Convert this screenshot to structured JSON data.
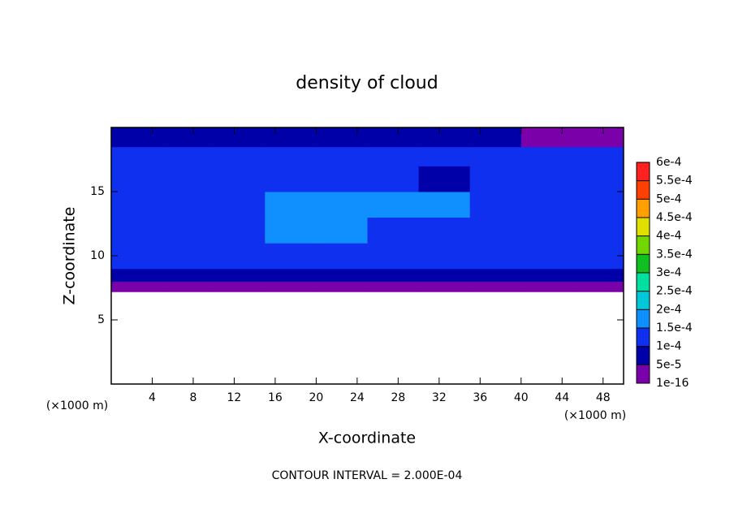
{
  "chart_data": {
    "type": "contour",
    "title": "density of cloud",
    "x_label": "X-coordinate",
    "y_label": "Z-coordinate",
    "x_unit_left": "(×1000 m)",
    "x_unit_right": "(×1000 m)",
    "footer": "CONTOUR INTERVAL = 2.000E-04",
    "xlim": [
      0,
      50
    ],
    "ylim": [
      0,
      20
    ],
    "xticks": [
      4,
      8,
      12,
      16,
      20,
      24,
      28,
      32,
      36,
      40,
      44,
      48
    ],
    "yticks": [
      5,
      10,
      15
    ],
    "field": {
      "xbins": [
        0,
        5,
        10,
        15,
        20,
        25,
        30,
        35,
        40,
        45,
        50
      ],
      "zbins": [
        7.2,
        8,
        9,
        11,
        13,
        15,
        17,
        18.5,
        20
      ],
      "values": [
        [
          3e-05,
          3e-05,
          3e-05,
          3e-05,
          3e-05,
          3e-05,
          3e-05,
          3e-05,
          3e-05,
          3e-05
        ],
        [
          7e-05,
          7e-05,
          7e-05,
          7e-05,
          7e-05,
          7e-05,
          7e-05,
          7e-05,
          7e-05,
          7e-05
        ],
        [
          0.00011,
          0.00011,
          0.00011,
          0.00011,
          0.00011,
          0.00011,
          0.00011,
          0.00011,
          0.00011,
          0.00011
        ],
        [
          0.00013,
          0.00013,
          0.00013,
          0.00016,
          0.00016,
          0.00013,
          0.00013,
          0.00013,
          0.00013,
          0.00013
        ],
        [
          0.00014,
          0.00014,
          0.00012,
          0.00016,
          0.00016,
          0.00016,
          0.00016,
          0.00014,
          0.00014,
          0.00014
        ],
        [
          0.00014,
          0.00014,
          0.00012,
          0.00014,
          0.00014,
          0.00014,
          7e-05,
          0.00014,
          0.00014,
          0.00014
        ],
        [
          0.0001,
          0.00012,
          0.00012,
          0.00011,
          0.00012,
          0.00012,
          0.00011,
          0.00012,
          0.00012,
          0.00012
        ],
        [
          6e-05,
          6e-05,
          6e-05,
          5e-05,
          6e-05,
          6e-05,
          5e-05,
          6e-05,
          4e-05,
          4e-05
        ]
      ]
    },
    "colorbar": {
      "ticks": [
        1e-16,
        {
          "value": 5e-05,
          "label": "5e-5"
        },
        {
          "value": 0.0001,
          "label": "1e-4"
        },
        {
          "value": 0.00015,
          "label": "1.5e-4"
        },
        {
          "value": 0.0002,
          "label": "2e-4"
        },
        {
          "value": 0.00025,
          "label": "2.5e-4"
        },
        {
          "value": 0.0003,
          "label": "3e-4"
        },
        {
          "value": 0.00035,
          "label": "3.5e-4"
        },
        {
          "value": 0.0004,
          "label": "4e-4"
        },
        {
          "value": 0.00045,
          "label": "4.5e-4"
        },
        {
          "value": 0.0005,
          "label": "5e-4"
        },
        {
          "value": 0.00055,
          "label": "5.5e-4"
        },
        {
          "value": 0.0006,
          "label": "6e-4"
        }
      ],
      "colors": [
        "#7a00aa",
        "#0000a8",
        "#1030f0",
        "#1090ff",
        "#00c8d8",
        "#00e0a0",
        "#10c020",
        "#70d800",
        "#e0e000",
        "#ffa000",
        "#ff4000",
        "#ff2020"
      ],
      "top_color": "#ff8888"
    }
  }
}
